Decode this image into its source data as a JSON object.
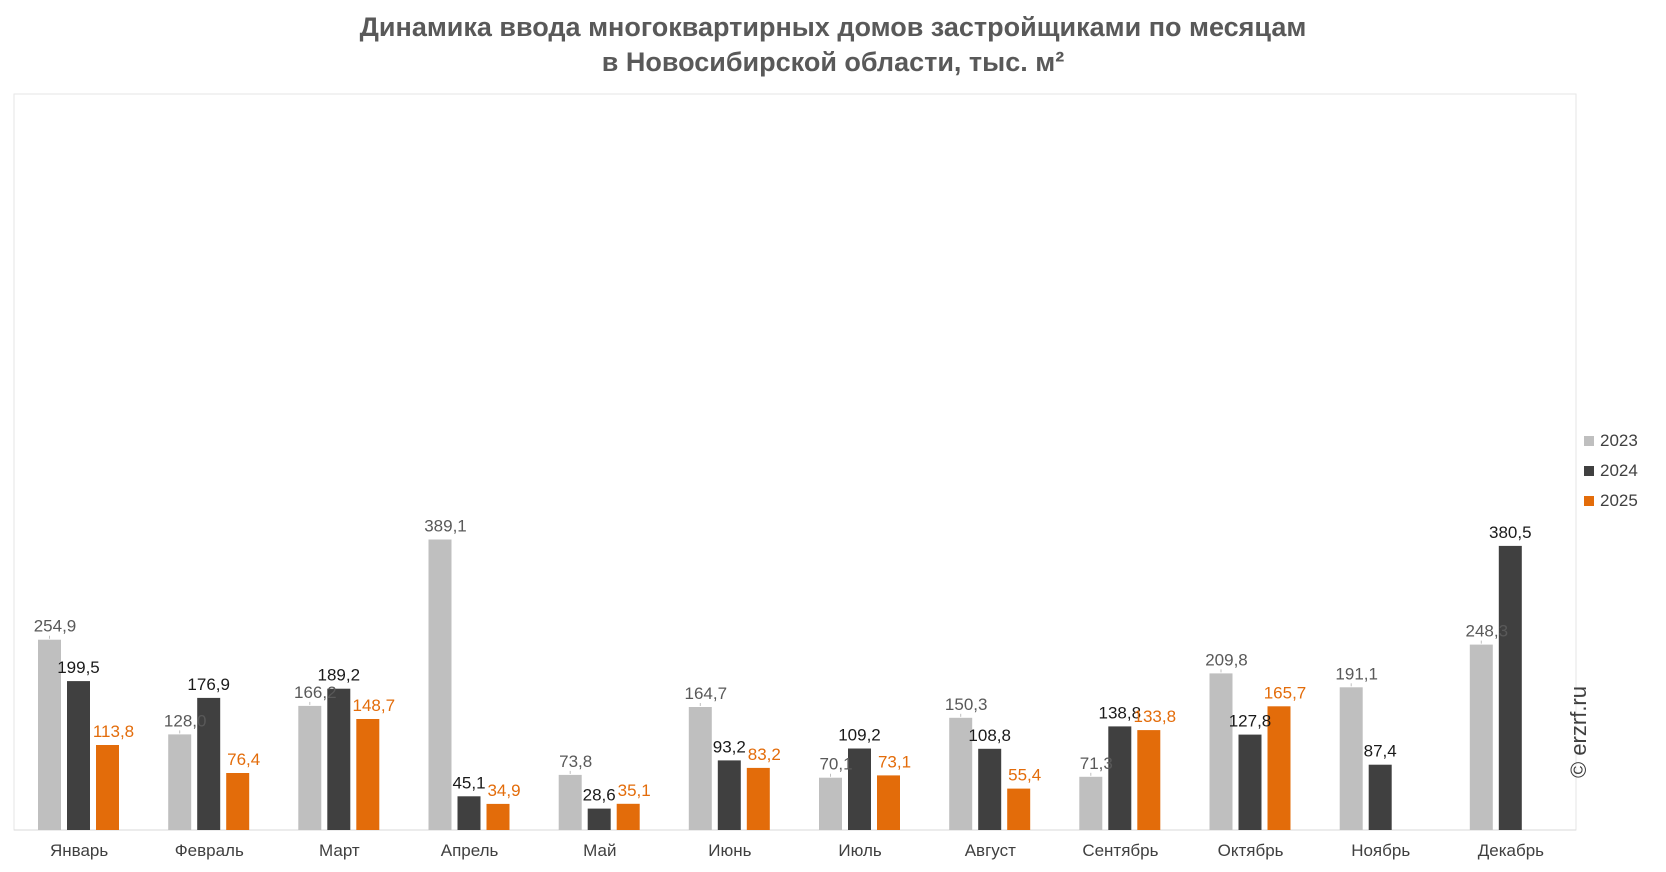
{
  "title_line1": "Динамика ввода многоквартирных домов застройщиками по месяцам",
  "title_line2": "в Новосибирской области, тыс. м²",
  "watermark": "© erzrf.ru",
  "chart_data": {
    "type": "bar",
    "title": "Динамика ввода многоквартирных домов застройщиками по месяцам в Новосибирской области, тыс. м²",
    "categories": [
      "Январь",
      "Февраль",
      "Март",
      "Апрель",
      "Май",
      "Июнь",
      "Июль",
      "Август",
      "Сентябрь",
      "Октябрь",
      "Ноябрь",
      "Декабрь"
    ],
    "series": [
      {
        "name": "2023",
        "color": "#bfbfbf",
        "label_color": "#595959",
        "values": [
          254.9,
          128.0,
          166.2,
          389.1,
          73.8,
          164.7,
          70.1,
          150.3,
          71.3,
          209.8,
          191.1,
          248.3
        ],
        "labels": [
          "254,9",
          "128,0",
          "166,2",
          "389,1",
          "73,8",
          "164,7",
          "70,1",
          "150,3",
          "71,3",
          "209,8",
          "191,1",
          "248,3"
        ]
      },
      {
        "name": "2024",
        "color": "#404040",
        "label_color": "#1a1a1a",
        "values": [
          199.5,
          176.9,
          189.2,
          45.1,
          28.6,
          93.2,
          109.2,
          108.8,
          138.8,
          127.8,
          87.4,
          380.5
        ],
        "labels": [
          "199,5",
          "176,9",
          "189,2",
          "45,1",
          "28,6",
          "93,2",
          "109,2",
          "108,8",
          "138,8",
          "127,8",
          "87,4",
          "380,5"
        ]
      },
      {
        "name": "2025",
        "color": "#e36c0a",
        "label_color": "#e36c0a",
        "values": [
          113.8,
          76.4,
          148.7,
          34.9,
          35.1,
          83.2,
          73.1,
          55.4,
          133.8,
          165.7,
          null,
          null
        ],
        "labels": [
          "113,8",
          "76,4",
          "148,7",
          "34,9",
          "35,1",
          "83,2",
          "73,1",
          "55,4",
          "133,8",
          "165,7",
          null,
          null
        ]
      }
    ],
    "ylim": [
      0,
      420
    ],
    "legend": "right",
    "grid": false
  }
}
